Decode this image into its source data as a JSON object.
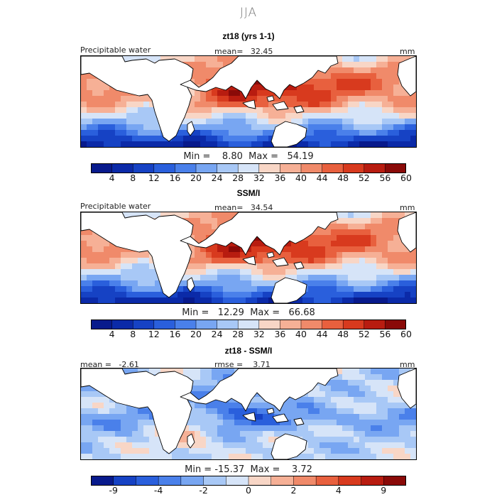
{
  "figure": {
    "season": "JJA"
  },
  "panels": [
    {
      "title": "zt18 (yrs 1-1)",
      "left_label": "Precipitable water",
      "center_label": "mean=   32.45",
      "unit": "mm",
      "min_max": "Min =    8.80  Max =   54.19",
      "colorbar_ticks": [
        "4",
        "8",
        "12",
        "16",
        "20",
        "24",
        "28",
        "32",
        "36",
        "40",
        "44",
        "48",
        "52",
        "56",
        "60"
      ]
    },
    {
      "title": "SSM/I",
      "left_label": "Precipitable water",
      "center_label": "mean=   34.54",
      "unit": "mm",
      "min_max": "Min =   12.29  Max =   66.68",
      "colorbar_ticks": [
        "4",
        "8",
        "12",
        "16",
        "20",
        "24",
        "28",
        "32",
        "36",
        "40",
        "44",
        "48",
        "52",
        "56",
        "60"
      ]
    },
    {
      "title": "zt18 - SSM/I",
      "left_label": "mean =   -2.61",
      "center_label": "rmse =    3.71",
      "unit": "mm",
      "min_max": "Min = -15.37  Max =    3.72",
      "colorbar_ticks": [
        "-9",
        "-4",
        "-2",
        "0",
        "2",
        "4",
        "9"
      ]
    }
  ],
  "colors": {
    "abs_scale": [
      "#081a8c",
      "#0b2aa8",
      "#1642c4",
      "#2a5fdc",
      "#4a80ea",
      "#78a6f2",
      "#a8c8f6",
      "#d6e4f8",
      "#f8d6c6",
      "#f6b096",
      "#f08a6a",
      "#e8603e",
      "#d83a1e",
      "#b81c10",
      "#8a0a08"
    ],
    "diff_scale": [
      "#081a8c",
      "#1642c4",
      "#2a5fdc",
      "#4a80ea",
      "#78a6f2",
      "#a8c8f6",
      "#d6e4f8",
      "#f8d6c6",
      "#f6b096",
      "#f08a6a",
      "#e8603e",
      "#d83a1e",
      "#b81c10",
      "#8a0a08"
    ],
    "land": "#ffffff",
    "coast": "#000000"
  }
}
